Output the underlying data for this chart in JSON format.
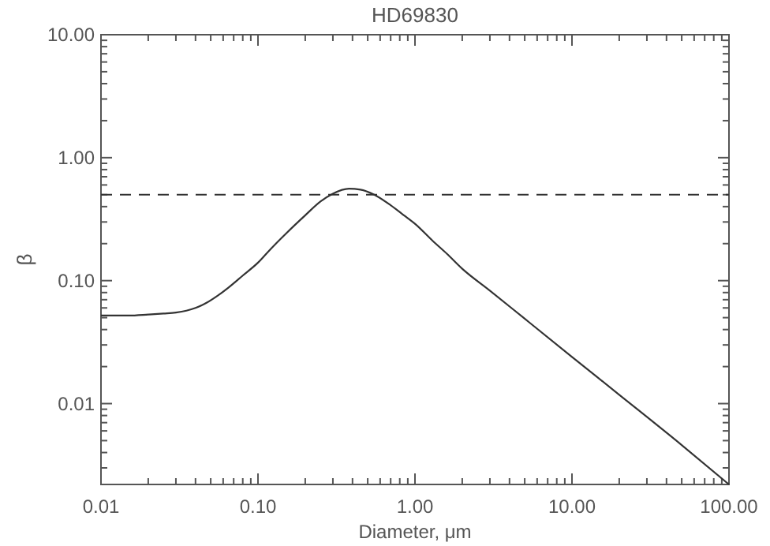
{
  "chart_data": {
    "type": "line",
    "title": "HD69830",
    "xlabel": "Diameter, μm",
    "ylabel": "β",
    "log": "xy",
    "x": [
      0.01,
      0.015,
      0.02,
      0.025,
      0.03,
      0.035,
      0.04,
      0.047,
      0.055,
      0.065,
      0.08,
      0.1,
      0.12,
      0.15,
      0.2,
      0.25,
      0.3,
      0.38,
      0.45,
      0.55,
      0.7,
      0.85,
      1,
      1.3,
      1.6,
      2,
      3,
      5,
      10,
      20,
      50,
      100
    ],
    "series": [
      {
        "color": "#333333",
        "line_style": "solid",
        "values": [
          0.052,
          0.052,
          0.053,
          0.054,
          0.055,
          0.057,
          0.06,
          0.066,
          0.075,
          0.088,
          0.11,
          0.14,
          0.18,
          0.24,
          0.34,
          0.44,
          0.51,
          0.56,
          0.55,
          0.5,
          0.41,
          0.34,
          0.29,
          0.21,
          0.165,
          0.125,
          0.083,
          0.049,
          0.024,
          0.0118,
          0.0046,
          0.0022
        ]
      }
    ],
    "xlim": [
      0.01,
      100
    ],
    "ylim": [
      0.0022,
      10
    ],
    "xticks": [
      {
        "value": 0.01,
        "label": "0.01"
      },
      {
        "value": 0.02,
        "label": null
      },
      {
        "value": 0.03,
        "label": null
      },
      {
        "value": 0.04,
        "label": null
      },
      {
        "value": 0.05,
        "label": null
      },
      {
        "value": 0.06,
        "label": null
      },
      {
        "value": 0.07,
        "label": null
      },
      {
        "value": 0.08,
        "label": null
      },
      {
        "value": 0.09,
        "label": null
      },
      {
        "value": 0.1,
        "label": "0.10"
      },
      {
        "value": 0.2,
        "label": null
      },
      {
        "value": 0.3,
        "label": null
      },
      {
        "value": 0.4,
        "label": null
      },
      {
        "value": 0.5,
        "label": null
      },
      {
        "value": 0.6,
        "label": null
      },
      {
        "value": 0.7,
        "label": null
      },
      {
        "value": 0.8,
        "label": null
      },
      {
        "value": 0.9,
        "label": null
      },
      {
        "value": 1,
        "label": "1.00"
      },
      {
        "value": 2,
        "label": null
      },
      {
        "value": 3,
        "label": null
      },
      {
        "value": 4,
        "label": null
      },
      {
        "value": 5,
        "label": null
      },
      {
        "value": 6,
        "label": null
      },
      {
        "value": 7,
        "label": null
      },
      {
        "value": 8,
        "label": null
      },
      {
        "value": 9,
        "label": null
      },
      {
        "value": 10,
        "label": "10.00"
      },
      {
        "value": 20,
        "label": null
      },
      {
        "value": 30,
        "label": null
      },
      {
        "value": 40,
        "label": null
      },
      {
        "value": 50,
        "label": null
      },
      {
        "value": 60,
        "label": null
      },
      {
        "value": 70,
        "label": null
      },
      {
        "value": 80,
        "label": null
      },
      {
        "value": 90,
        "label": null
      },
      {
        "value": 100,
        "label": "100.00"
      }
    ],
    "yticks": [
      {
        "value": 0.003,
        "label": null
      },
      {
        "value": 0.004,
        "label": null
      },
      {
        "value": 0.005,
        "label": null
      },
      {
        "value": 0.006,
        "label": null
      },
      {
        "value": 0.007,
        "label": null
      },
      {
        "value": 0.008,
        "label": null
      },
      {
        "value": 0.009,
        "label": null
      },
      {
        "value": 0.01,
        "label": "0.01"
      },
      {
        "value": 0.02,
        "label": null
      },
      {
        "value": 0.03,
        "label": null
      },
      {
        "value": 0.04,
        "label": null
      },
      {
        "value": 0.05,
        "label": null
      },
      {
        "value": 0.06,
        "label": null
      },
      {
        "value": 0.07,
        "label": null
      },
      {
        "value": 0.08,
        "label": null
      },
      {
        "value": 0.09,
        "label": null
      },
      {
        "value": 0.1,
        "label": "0.10"
      },
      {
        "value": 0.2,
        "label": null
      },
      {
        "value": 0.3,
        "label": null
      },
      {
        "value": 0.4,
        "label": null
      },
      {
        "value": 0.5,
        "label": null
      },
      {
        "value": 0.6,
        "label": null
      },
      {
        "value": 0.7,
        "label": null
      },
      {
        "value": 0.8,
        "label": null
      },
      {
        "value": 0.9,
        "label": null
      },
      {
        "value": 1,
        "label": "1.00"
      },
      {
        "value": 2,
        "label": null
      },
      {
        "value": 3,
        "label": null
      },
      {
        "value": 4,
        "label": null
      },
      {
        "value": 5,
        "label": null
      },
      {
        "value": 6,
        "label": null
      },
      {
        "value": 7,
        "label": null
      },
      {
        "value": 8,
        "label": null
      },
      {
        "value": 9,
        "label": null
      },
      {
        "value": 10,
        "label": "10.00"
      }
    ],
    "ref_lines": [
      {
        "axis": "y",
        "value": 0.5,
        "line_style": "dashed",
        "color": "#333333"
      }
    ]
  }
}
